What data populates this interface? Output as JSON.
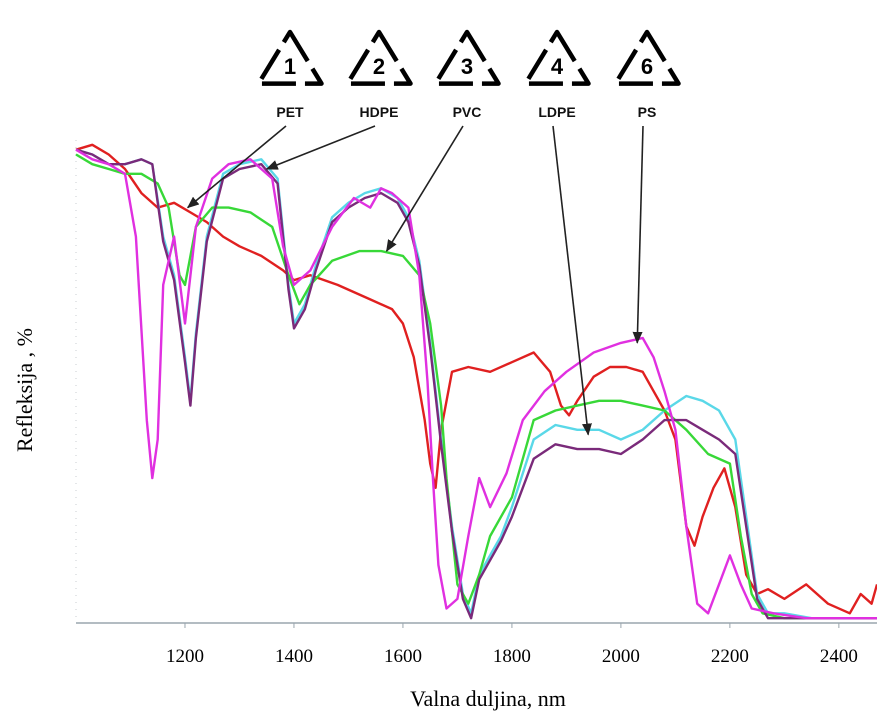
{
  "chart_data": {
    "type": "line",
    "xlabel": "Valna duljina, nm",
    "ylabel": "Refleksija , %",
    "x_ticks": [
      "1200",
      "1400",
      "1600",
      "1800",
      "2000",
      "2200",
      "2400"
    ],
    "xlim": [
      1000,
      2470
    ],
    "ylim": [
      0,
      100
    ],
    "grid": false,
    "legend_placement": "top (recycling symbols with arrows)",
    "series": [
      {
        "name": "PET",
        "color": "#e02020",
        "x": [
          1000,
          1030,
          1060,
          1090,
          1120,
          1150,
          1180,
          1210,
          1240,
          1270,
          1300,
          1340,
          1380,
          1400,
          1430,
          1480,
          1540,
          1580,
          1600,
          1620,
          1640,
          1650,
          1660,
          1670,
          1690,
          1720,
          1760,
          1800,
          1840,
          1870,
          1890,
          1905,
          1920,
          1950,
          1980,
          2010,
          2040,
          2060,
          2080,
          2100,
          2120,
          2135,
          2150,
          2170,
          2190,
          2210,
          2230,
          2250,
          2270,
          2300,
          2340,
          2380,
          2420,
          2440,
          2460,
          2470
        ],
        "y": [
          98,
          99,
          97,
          94,
          89,
          86,
          87,
          85,
          83,
          80,
          78,
          76,
          73,
          71,
          72,
          70,
          67,
          65,
          62,
          55,
          42,
          33,
          28,
          40,
          52,
          53,
          52,
          54,
          56,
          52,
          45,
          43,
          46,
          51,
          53,
          53,
          52,
          48,
          44,
          38,
          20,
          16,
          22,
          28,
          32,
          24,
          10,
          6,
          7,
          5,
          8,
          4,
          2,
          6,
          4,
          8
        ]
      },
      {
        "name": "HDPE",
        "color": "#5ad8e8",
        "x": [
          1000,
          1030,
          1060,
          1090,
          1120,
          1140,
          1160,
          1180,
          1200,
          1210,
          1220,
          1240,
          1270,
          1300,
          1340,
          1370,
          1390,
          1400,
          1420,
          1440,
          1470,
          1500,
          1530,
          1560,
          1590,
          1610,
          1630,
          1650,
          1670,
          1690,
          1710,
          1725,
          1740,
          1760,
          1780,
          1800,
          1840,
          1880,
          1920,
          1960,
          2000,
          2040,
          2080,
          2120,
          2150,
          2180,
          2210,
          2230,
          2250,
          2270,
          2300,
          2350,
          2400,
          2470
        ],
        "y": [
          98,
          97,
          95,
          95,
          96,
          95,
          80,
          72,
          55,
          46,
          60,
          80,
          93,
          95,
          96,
          92,
          70,
          62,
          66,
          74,
          84,
          87,
          89,
          90,
          88,
          84,
          75,
          58,
          38,
          20,
          6,
          2,
          10,
          14,
          18,
          24,
          38,
          41,
          40,
          40,
          38,
          40,
          44,
          47,
          46,
          44,
          38,
          22,
          6,
          2,
          2,
          1,
          1,
          1
        ]
      },
      {
        "name": "PVC",
        "color": "#38d838",
        "x": [
          1000,
          1030,
          1060,
          1090,
          1120,
          1150,
          1170,
          1190,
          1200,
          1220,
          1250,
          1280,
          1320,
          1360,
          1390,
          1410,
          1430,
          1470,
          1520,
          1560,
          1600,
          1630,
          1650,
          1670,
          1680,
          1700,
          1720,
          1740,
          1760,
          1800,
          1840,
          1880,
          1920,
          1960,
          2000,
          2040,
          2080,
          2120,
          2160,
          2200,
          2220,
          2240,
          2260,
          2300,
          2350,
          2470
        ],
        "y": [
          97,
          95,
          94,
          93,
          93,
          91,
          86,
          72,
          70,
          82,
          86,
          86,
          85,
          82,
          72,
          66,
          70,
          75,
          77,
          77,
          76,
          72,
          62,
          45,
          30,
          8,
          4,
          10,
          18,
          26,
          42,
          44,
          45,
          46,
          46,
          45,
          44,
          40,
          35,
          33,
          18,
          6,
          2,
          1,
          1,
          1
        ]
      },
      {
        "name": "LDPE",
        "color": "#7a2a7a",
        "x": [
          1000,
          1030,
          1060,
          1090,
          1120,
          1140,
          1160,
          1180,
          1200,
          1210,
          1220,
          1240,
          1270,
          1300,
          1340,
          1370,
          1390,
          1400,
          1420,
          1440,
          1470,
          1500,
          1530,
          1560,
          1590,
          1610,
          1630,
          1650,
          1670,
          1690,
          1710,
          1725,
          1740,
          1760,
          1780,
          1800,
          1840,
          1880,
          1920,
          1960,
          2000,
          2040,
          2080,
          2120,
          2150,
          2180,
          2210,
          2230,
          2250,
          2270,
          2300,
          2350,
          2400,
          2470
        ],
        "y": [
          98,
          97,
          95,
          95,
          96,
          95,
          79,
          71,
          54,
          45,
          59,
          79,
          92,
          94,
          95,
          91,
          69,
          61,
          65,
          73,
          83,
          86,
          88,
          89,
          87,
          83,
          74,
          57,
          37,
          19,
          5,
          1,
          9,
          13,
          17,
          22,
          34,
          37,
          36,
          36,
          35,
          38,
          42,
          42,
          40,
          38,
          35,
          20,
          5,
          1,
          1,
          1,
          1,
          1
        ]
      },
      {
        "name": "PS",
        "color": "#e030e0",
        "x": [
          1000,
          1030,
          1060,
          1090,
          1110,
          1130,
          1140,
          1150,
          1160,
          1180,
          1200,
          1220,
          1250,
          1280,
          1320,
          1360,
          1380,
          1400,
          1430,
          1470,
          1510,
          1540,
          1560,
          1580,
          1610,
          1630,
          1645,
          1655,
          1665,
          1680,
          1700,
          1720,
          1740,
          1760,
          1790,
          1820,
          1860,
          1900,
          1950,
          2000,
          2040,
          2060,
          2080,
          2100,
          2120,
          2140,
          2160,
          2180,
          2200,
          2220,
          2240,
          2280,
          2340,
          2400,
          2470
        ],
        "y": [
          98,
          96,
          95,
          93,
          80,
          42,
          30,
          38,
          70,
          80,
          62,
          82,
          92,
          95,
          96,
          92,
          78,
          70,
          73,
          82,
          88,
          86,
          90,
          89,
          86,
          72,
          50,
          30,
          12,
          3,
          5,
          18,
          30,
          24,
          31,
          42,
          48,
          52,
          56,
          58,
          59,
          55,
          48,
          40,
          20,
          4,
          2,
          8,
          14,
          8,
          3,
          2,
          1,
          1,
          1
        ]
      }
    ],
    "annotations": [
      {
        "number": "1",
        "label": "PET",
        "target_x": 1205,
        "target_y": 86
      },
      {
        "number": "2",
        "label": "HDPE",
        "target_x": 1350,
        "target_y": 94
      },
      {
        "number": "3",
        "label": "PVC",
        "target_x": 1570,
        "target_y": 77
      },
      {
        "number": "4",
        "label": "LDPE",
        "target_x": 1940,
        "target_y": 39
      },
      {
        "number": "6",
        "label": "PS",
        "target_x": 2030,
        "target_y": 58
      }
    ]
  }
}
